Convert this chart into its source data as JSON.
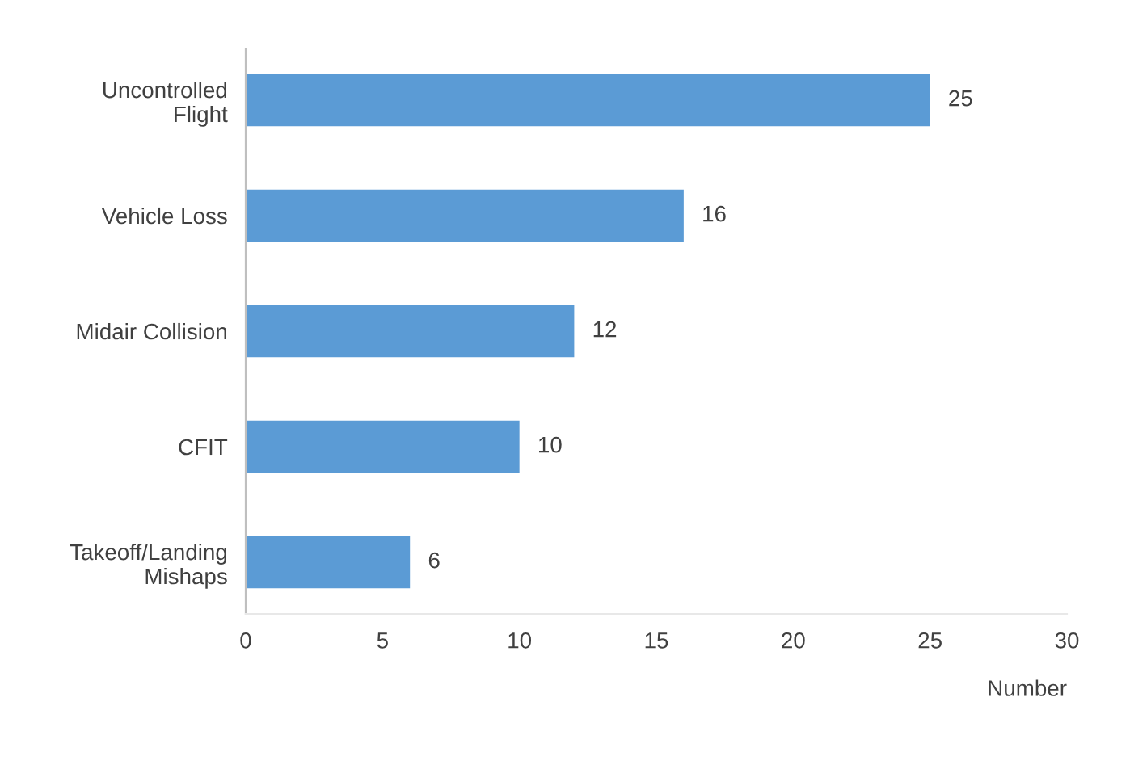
{
  "chart_data": {
    "type": "bar",
    "orientation": "horizontal",
    "categories": [
      "Uncontrolled\nFlight",
      "Vehicle Loss",
      "Midair Collision",
      "CFIT",
      "Takeoff/Landing\nMishaps"
    ],
    "values": [
      25,
      16,
      12,
      10,
      6
    ],
    "color": "#5b9bd5",
    "xlabel": "Number",
    "xlim": [
      0,
      30
    ],
    "xticks": [
      0,
      5,
      10,
      15,
      20,
      25,
      30
    ],
    "data_labels": true,
    "grid": false,
    "legend": false
  }
}
